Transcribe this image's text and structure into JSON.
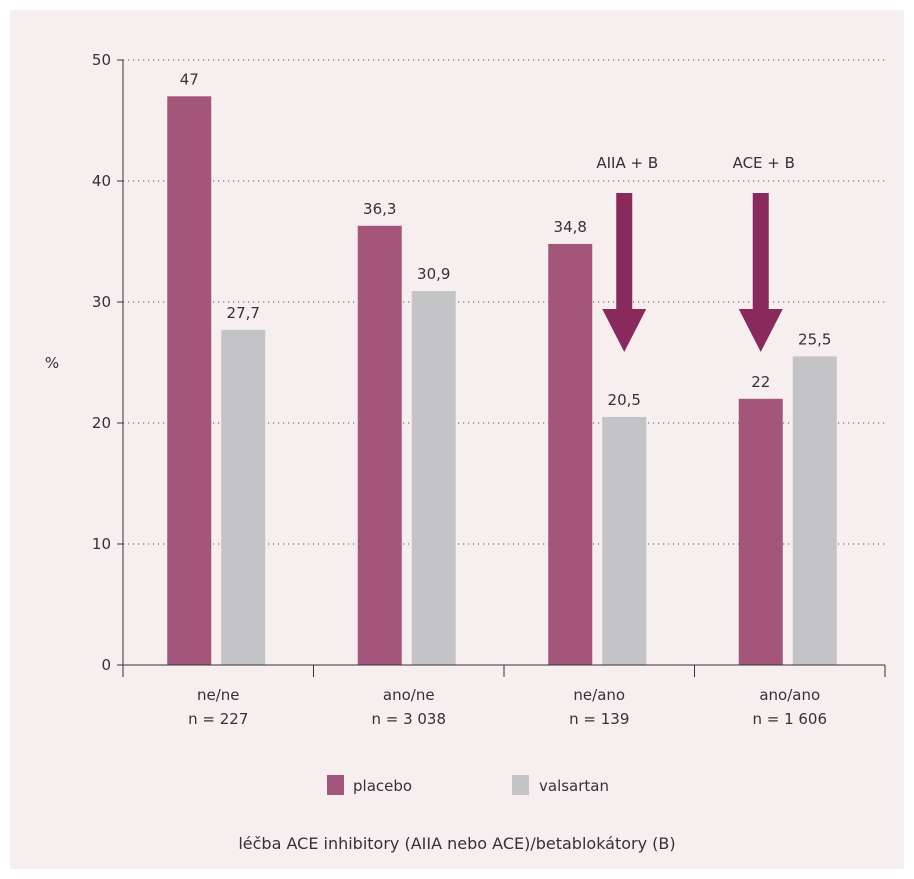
{
  "chart_data": {
    "type": "bar",
    "ylabel": "%",
    "xlabel": "léčba ACE inhibitory (AIIA nebo ACE)/betablokátory (B)",
    "ylim": [
      0,
      50
    ],
    "yticks": [
      0,
      10,
      20,
      30,
      40,
      50
    ],
    "grid": "dotted horizontal",
    "categories": [
      {
        "line1": "ne/ne",
        "line2": "n = 227"
      },
      {
        "line1": "ano/ne",
        "line2": "n = 3 038"
      },
      {
        "line1": "ne/ano",
        "line2": "n = 139"
      },
      {
        "line1": "ano/ano",
        "line2": "n = 1 606"
      }
    ],
    "series": [
      {
        "name": "placebo",
        "color": "#a3567a",
        "values": [
          47,
          36.3,
          34.8,
          22
        ],
        "labels": [
          "47",
          "36,3",
          "34,8",
          "22"
        ]
      },
      {
        "name": "valsartan",
        "color": "#c4c4c6",
        "values": [
          27.7,
          30.9,
          20.5,
          25.5
        ],
        "labels": [
          "27,7",
          "30,9",
          "20,5",
          "25,5"
        ]
      }
    ],
    "annotations": [
      {
        "text": "AIIA + B",
        "category_index": 2,
        "arrow_color": "#8a2a5c"
      },
      {
        "text": "ACE + B",
        "category_index": 3,
        "arrow_color": "#8a2a5c"
      }
    ],
    "legend_position": "bottom"
  }
}
